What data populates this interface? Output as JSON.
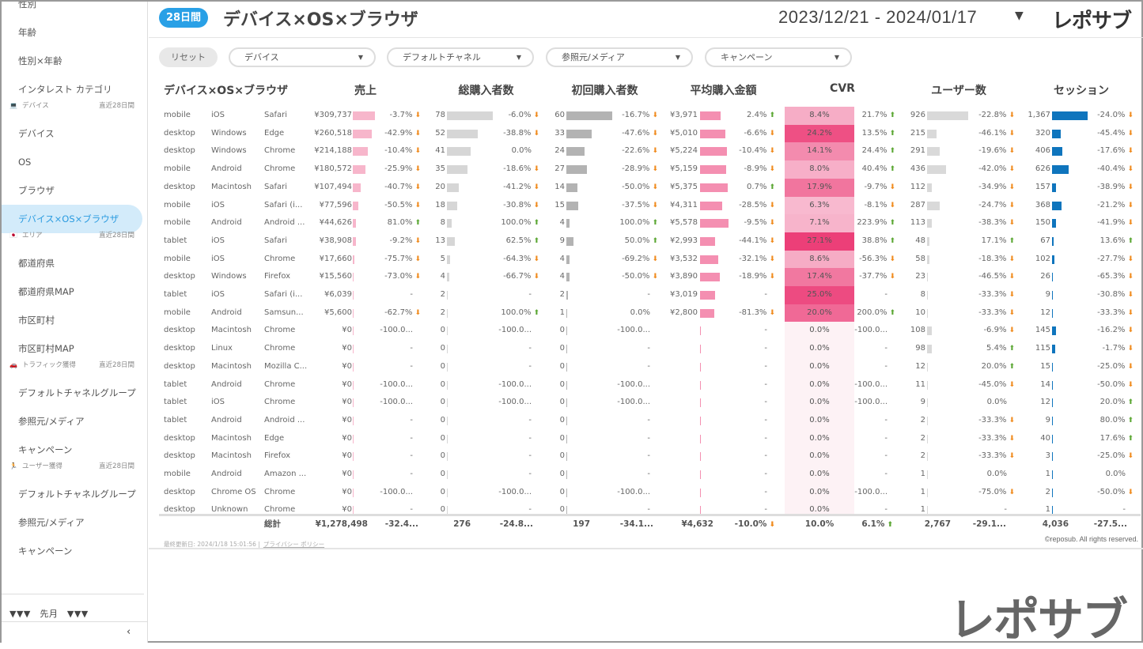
{
  "sidebar": {
    "entries": [
      {
        "type": "item",
        "label": "性別"
      },
      {
        "type": "item",
        "label": "年齢"
      },
      {
        "type": "item",
        "label": "性別×年齢"
      },
      {
        "type": "item",
        "label": "インタレスト カテゴリ"
      },
      {
        "type": "section",
        "icon": "laptop-icon",
        "glyph": "💻",
        "label": "デバイス",
        "period": "直近28日間"
      },
      {
        "type": "item",
        "label": "デバイス"
      },
      {
        "type": "item",
        "label": "OS"
      },
      {
        "type": "item",
        "label": "ブラウザ"
      },
      {
        "type": "item",
        "label": "デバイス×OS×ブラウザ",
        "active": true
      },
      {
        "type": "section",
        "icon": "japan-flag-icon",
        "glyph": "🇯🇵",
        "label": "エリア",
        "period": "直近28日間"
      },
      {
        "type": "item",
        "label": "都道府県"
      },
      {
        "type": "item",
        "label": "都道府県MAP"
      },
      {
        "type": "item",
        "label": "市区町村"
      },
      {
        "type": "item",
        "label": "市区町村MAP"
      },
      {
        "type": "section",
        "icon": "car-icon",
        "glyph": "🚗",
        "label": "トラフィック獲得",
        "period": "直近28日間"
      },
      {
        "type": "item",
        "label": "デフォルトチャネルグループ"
      },
      {
        "type": "item",
        "label": "参照元/メディア"
      },
      {
        "type": "item",
        "label": "キャンペーン"
      },
      {
        "type": "section",
        "icon": "person-icon",
        "glyph": "🏃",
        "label": "ユーザー獲得",
        "period": "直近28日間"
      },
      {
        "type": "item",
        "label": "デフォルトチャネルグループ"
      },
      {
        "type": "item",
        "label": "参照元/メディア"
      },
      {
        "type": "item",
        "label": "キャンペーン"
      }
    ],
    "prev_label": "▼▼▼　先月　▼▼▼",
    "collapse_glyph": "‹"
  },
  "header": {
    "period_badge": "28日間",
    "title": "デバイス×OS×ブラウザ",
    "date_range": "2023/12/21 - 2024/01/17",
    "logo": "レポサブ"
  },
  "filters": {
    "reset": "リセット",
    "dropdowns": [
      "デバイス",
      "デフォルトチャネル",
      "参照元/メディア",
      "キャンペーン"
    ]
  },
  "table": {
    "headers": {
      "dimension": "デバイス×OS×ブラウザ",
      "revenue": "売上",
      "purchasers": "総購入者数",
      "first_purchasers": "初回購入者数",
      "avg_purchase": "平均購入金額",
      "cvr": "CVR",
      "users": "ユーザー数",
      "sessions": "セッション"
    },
    "colors": {
      "revenue_bar": "#f7b6cb",
      "purchasers_bar": "#d6d6d6",
      "first_bar": "#b3b3b3",
      "avg_bar": "#f48fb1",
      "users_bar": "#d9d9d9",
      "sessions_bar": "#0f75bd",
      "cvr_max": "#ec3f78",
      "up": "#5aa632",
      "down": "#f08a1c"
    },
    "rows": [
      [
        "mobile",
        "iOS",
        "Safari",
        309737,
        "¥309,737",
        "-3.7%",
        78,
        "-6.0%",
        60,
        "-16.7%",
        3971,
        "¥3,971",
        "2.4%",
        8.4,
        "8.4%",
        "21.7%",
        926,
        "926",
        "-22.8%",
        1367,
        "1,367",
        "-24.0%"
      ],
      [
        "desktop",
        "Windows",
        "Edge",
        260518,
        "¥260,518",
        "-42.9%",
        52,
        "-38.8%",
        33,
        "-47.6%",
        5010,
        "¥5,010",
        "-6.6%",
        24.2,
        "24.2%",
        "13.5%",
        215,
        "215",
        "-46.1%",
        320,
        "320",
        "-45.4%"
      ],
      [
        "desktop",
        "Windows",
        "Chrome",
        214188,
        "¥214,188",
        "-10.4%",
        41,
        "0.0%",
        24,
        "-22.6%",
        5224,
        "¥5,224",
        "-10.4%",
        14.1,
        "14.1%",
        "24.4%",
        291,
        "291",
        "-19.6%",
        406,
        "406",
        "-17.6%"
      ],
      [
        "mobile",
        "Android",
        "Chrome",
        180572,
        "¥180,572",
        "-25.9%",
        35,
        "-18.6%",
        27,
        "-28.9%",
        5159,
        "¥5,159",
        "-8.9%",
        8.0,
        "8.0%",
        "40.4%",
        436,
        "436",
        "-42.0%",
        626,
        "626",
        "-40.4%"
      ],
      [
        "desktop",
        "Macintosh",
        "Safari",
        107494,
        "¥107,494",
        "-40.7%",
        20,
        "-41.2%",
        14,
        "-50.0%",
        5375,
        "¥5,375",
        "0.7%",
        17.9,
        "17.9%",
        "-9.7%",
        112,
        "112",
        "-34.9%",
        157,
        "157",
        "-38.9%"
      ],
      [
        "mobile",
        "iOS",
        "Safari (i...",
        77596,
        "¥77,596",
        "-50.5%",
        18,
        "-30.8%",
        15,
        "-37.5%",
        4311,
        "¥4,311",
        "-28.5%",
        6.3,
        "6.3%",
        "-8.1%",
        287,
        "287",
        "-24.7%",
        368,
        "368",
        "-21.2%"
      ],
      [
        "mobile",
        "Android",
        "Android ...",
        44626,
        "¥44,626",
        "81.0%",
        8,
        "100.0%",
        4,
        "100.0%",
        5578,
        "¥5,578",
        "-9.5%",
        7.1,
        "7.1%",
        "223.9%",
        113,
        "113",
        "-38.3%",
        150,
        "150",
        "-41.9%"
      ],
      [
        "tablet",
        "iOS",
        "Safari",
        38908,
        "¥38,908",
        "-9.2%",
        13,
        "62.5%",
        9,
        "50.0%",
        2993,
        "¥2,993",
        "-44.1%",
        27.1,
        "27.1%",
        "38.8%",
        48,
        "48",
        "17.1%",
        67,
        "67",
        "13.6%"
      ],
      [
        "mobile",
        "iOS",
        "Chrome",
        17660,
        "¥17,660",
        "-75.7%",
        5,
        "-64.3%",
        4,
        "-69.2%",
        3532,
        "¥3,532",
        "-32.1%",
        8.6,
        "8.6%",
        "-56.3%",
        58,
        "58",
        "-18.3%",
        102,
        "102",
        "-27.7%"
      ],
      [
        "desktop",
        "Windows",
        "Firefox",
        15560,
        "¥15,560",
        "-73.0%",
        4,
        "-66.7%",
        4,
        "-50.0%",
        3890,
        "¥3,890",
        "-18.9%",
        17.4,
        "17.4%",
        "-37.7%",
        23,
        "23",
        "-46.5%",
        26,
        "26",
        "-65.3%"
      ],
      [
        "tablet",
        "iOS",
        "Safari (i...",
        6039,
        "¥6,039",
        "-",
        2,
        "-",
        2,
        "-",
        3019,
        "¥3,019",
        "-",
        25.0,
        "25.0%",
        "-",
        8,
        "8",
        "-33.3%",
        9,
        "9",
        "-30.8%"
      ],
      [
        "mobile",
        "Android",
        "Samsun...",
        5600,
        "¥5,600",
        "-62.7%",
        2,
        "100.0%",
        1,
        "0.0%",
        2800,
        "¥2,800",
        "-81.3%",
        20.0,
        "20.0%",
        "200.0%",
        10,
        "10",
        "-33.3%",
        12,
        "12",
        "-33.3%"
      ],
      [
        "desktop",
        "Macintosh",
        "Chrome",
        0,
        "¥0",
        "-100.0...",
        0,
        "-100.0...",
        0,
        "-100.0...",
        0,
        "",
        "-",
        0,
        "0.0%",
        "-100.0...",
        108,
        "108",
        "-6.9%",
        145,
        "145",
        "-16.2%"
      ],
      [
        "desktop",
        "Linux",
        "Chrome",
        0,
        "¥0",
        "-",
        0,
        "-",
        0,
        "-",
        0,
        "",
        "-",
        0,
        "0.0%",
        "-",
        98,
        "98",
        "5.4%",
        115,
        "115",
        "-1.7%"
      ],
      [
        "desktop",
        "Macintosh",
        "Mozilla C...",
        0,
        "¥0",
        "-",
        0,
        "-",
        0,
        "-",
        0,
        "",
        "-",
        0,
        "0.0%",
        "-",
        12,
        "12",
        "20.0%",
        15,
        "15",
        "-25.0%"
      ],
      [
        "tablet",
        "Android",
        "Chrome",
        0,
        "¥0",
        "-100.0...",
        0,
        "-100.0...",
        0,
        "-100.0...",
        0,
        "",
        "-",
        0,
        "0.0%",
        "-100.0...",
        11,
        "11",
        "-45.0%",
        14,
        "14",
        "-50.0%"
      ],
      [
        "tablet",
        "iOS",
        "Chrome",
        0,
        "¥0",
        "-100.0...",
        0,
        "-100.0...",
        0,
        "-100.0...",
        0,
        "",
        "-",
        0,
        "0.0%",
        "-100.0...",
        9,
        "9",
        "0.0%",
        12,
        "12",
        "20.0%"
      ],
      [
        "tablet",
        "Android",
        "Android ...",
        0,
        "¥0",
        "-",
        0,
        "-",
        0,
        "-",
        0,
        "",
        "-",
        0,
        "0.0%",
        "-",
        2,
        "2",
        "-33.3%",
        9,
        "9",
        "80.0%"
      ],
      [
        "desktop",
        "Macintosh",
        "Edge",
        0,
        "¥0",
        "-",
        0,
        "-",
        0,
        "-",
        0,
        "",
        "-",
        0,
        "0.0%",
        "-",
        2,
        "2",
        "-33.3%",
        40,
        "40",
        "17.6%"
      ],
      [
        "desktop",
        "Macintosh",
        "Firefox",
        0,
        "¥0",
        "-",
        0,
        "-",
        0,
        "-",
        0,
        "",
        "-",
        0,
        "0.0%",
        "-",
        2,
        "2",
        "-33.3%",
        3,
        "3",
        "-25.0%"
      ],
      [
        "mobile",
        "Android",
        "Amazon ...",
        0,
        "¥0",
        "-",
        0,
        "-",
        0,
        "-",
        0,
        "",
        "-",
        0,
        "0.0%",
        "-",
        1,
        "1",
        "0.0%",
        1,
        "1",
        "0.0%"
      ],
      [
        "desktop",
        "Chrome OS",
        "Chrome",
        0,
        "¥0",
        "-100.0...",
        0,
        "-100.0...",
        0,
        "-100.0...",
        0,
        "",
        "-",
        0,
        "0.0%",
        "-100.0...",
        1,
        "1",
        "-75.0%",
        2,
        "2",
        "-50.0%"
      ],
      [
        "desktop",
        "Unknown",
        "Chrome",
        0,
        "¥0",
        "-",
        0,
        "-",
        0,
        "-",
        0,
        "",
        "-",
        0,
        "0.0%",
        "-",
        1,
        "1",
        "-",
        1,
        "1",
        "-"
      ]
    ],
    "totals": {
      "label": "総計",
      "revenue": "¥1,278,498",
      "revenue_chg": "-32.4...",
      "purchasers": "276",
      "purchasers_chg": "-24.8...",
      "first": "197",
      "first_chg": "-34.1...",
      "avg": "¥4,632",
      "avg_chg": "-10.0%",
      "cvr": "10.0%",
      "cvr_chg": "6.1%",
      "users": "2,767",
      "users_chg": "-29.1...",
      "sessions": "4,036",
      "sessions_chg": "-27.5..."
    }
  },
  "footer": {
    "updated": "最終更新日: 2024/1/18 15:01:56 |",
    "privacy": "プライバシー ポリシー",
    "copyright": "©reposub. All rights reserved.",
    "watermark": "レポサブ"
  }
}
